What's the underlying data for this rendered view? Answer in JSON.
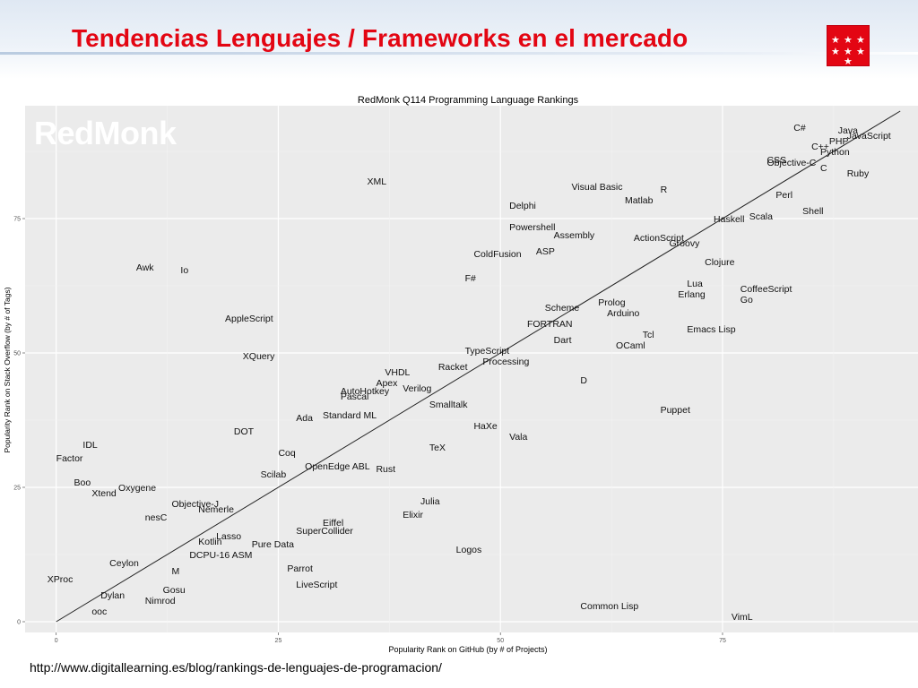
{
  "slide": {
    "title": "Tendencias Lenguajes / Frameworks en el mercado",
    "source_url": "http://www.digitallearning.es/blog/rankings-de-lenguajes-de-programacion/",
    "title_color": "#e30613",
    "logo_icon": "comunidad-de-madrid-flag-logo",
    "logo_color": "#e30613"
  },
  "chart_data": {
    "type": "scatter",
    "title": "RedMonk Q114 Programming Language Rankings",
    "watermark": "RedMonk",
    "xlabel": "Popularity Rank on GitHub (by # of Projects)",
    "ylabel": "Popularity Rank on Stack Overflow (by # of Tags)",
    "xlim": [
      -3.5,
      97
    ],
    "ylim": [
      -2,
      96
    ],
    "xticks": [
      0,
      25,
      50,
      75
    ],
    "yticks": [
      0,
      25,
      50,
      75
    ],
    "grid": true,
    "panel_color": "#ebebeb",
    "trend_line": {
      "from": [
        0,
        0
      ],
      "to": [
        95,
        95
      ]
    },
    "points": [
      {
        "label": "C#",
        "x": 83,
        "y": 92
      },
      {
        "label": "Java",
        "x": 88,
        "y": 91.5
      },
      {
        "label": "JavaScript",
        "x": 89,
        "y": 90.5
      },
      {
        "label": "PHP",
        "x": 87,
        "y": 89.5
      },
      {
        "label": "C++",
        "x": 85,
        "y": 88.5
      },
      {
        "label": "Python",
        "x": 86,
        "y": 87.5
      },
      {
        "label": "CSS",
        "x": 80,
        "y": 86
      },
      {
        "label": "Objective-C",
        "x": 80,
        "y": 85.5
      },
      {
        "label": "C",
        "x": 86,
        "y": 84.5
      },
      {
        "label": "Ruby",
        "x": 89,
        "y": 83.5
      },
      {
        "label": "XML",
        "x": 35,
        "y": 82
      },
      {
        "label": "Visual Basic",
        "x": 58,
        "y": 81
      },
      {
        "label": "R",
        "x": 68,
        "y": 80.5
      },
      {
        "label": "Perl",
        "x": 81,
        "y": 79.5
      },
      {
        "label": "Matlab",
        "x": 64,
        "y": 78.5
      },
      {
        "label": "Delphi",
        "x": 51,
        "y": 77.5
      },
      {
        "label": "Shell",
        "x": 84,
        "y": 76.5
      },
      {
        "label": "Scala",
        "x": 78,
        "y": 75.5
      },
      {
        "label": "Haskell",
        "x": 74,
        "y": 75
      },
      {
        "label": "Powershell",
        "x": 51,
        "y": 73.5
      },
      {
        "label": "Assembly",
        "x": 56,
        "y": 72
      },
      {
        "label": "ActionScript",
        "x": 65,
        "y": 71.5
      },
      {
        "label": "Groovy",
        "x": 69,
        "y": 70.5
      },
      {
        "label": "ASP",
        "x": 54,
        "y": 69
      },
      {
        "label": "ColdFusion",
        "x": 47,
        "y": 68.5
      },
      {
        "label": "Clojure",
        "x": 73,
        "y": 67
      },
      {
        "label": "Awk",
        "x": 9,
        "y": 66
      },
      {
        "label": "Io",
        "x": 14,
        "y": 65.5
      },
      {
        "label": "F#",
        "x": 46,
        "y": 64
      },
      {
        "label": "Lua",
        "x": 71,
        "y": 63
      },
      {
        "label": "CoffeeScript",
        "x": 77,
        "y": 62
      },
      {
        "label": "Erlang",
        "x": 70,
        "y": 61
      },
      {
        "label": "Go",
        "x": 77,
        "y": 60
      },
      {
        "label": "Prolog",
        "x": 61,
        "y": 59.5
      },
      {
        "label": "Scheme",
        "x": 55,
        "y": 58.5
      },
      {
        "label": "Arduino",
        "x": 62,
        "y": 57.5
      },
      {
        "label": "AppleScript",
        "x": 19,
        "y": 56.5
      },
      {
        "label": "FORTRAN",
        "x": 53,
        "y": 55.5
      },
      {
        "label": "Emacs Lisp",
        "x": 71,
        "y": 54.5
      },
      {
        "label": "Tcl",
        "x": 66,
        "y": 53.5
      },
      {
        "label": "Dart",
        "x": 56,
        "y": 52.5
      },
      {
        "label": "OCaml",
        "x": 63,
        "y": 51.5
      },
      {
        "label": "TypeScript",
        "x": 46,
        "y": 50.5
      },
      {
        "label": "XQuery",
        "x": 21,
        "y": 49.5
      },
      {
        "label": "Processing",
        "x": 48,
        "y": 48.5
      },
      {
        "label": "Racket",
        "x": 43,
        "y": 47.5
      },
      {
        "label": "VHDL",
        "x": 37,
        "y": 46.5
      },
      {
        "label": "D",
        "x": 59,
        "y": 45
      },
      {
        "label": "Apex",
        "x": 36,
        "y": 44.5
      },
      {
        "label": "Verilog",
        "x": 39,
        "y": 43.5
      },
      {
        "label": "AutoHotkey",
        "x": 32,
        "y": 43
      },
      {
        "label": "Pascal",
        "x": 32,
        "y": 42
      },
      {
        "label": "Smalltalk",
        "x": 42,
        "y": 40.5
      },
      {
        "label": "Puppet",
        "x": 68,
        "y": 39.5
      },
      {
        "label": "Standard ML",
        "x": 30,
        "y": 38.5
      },
      {
        "label": "Ada",
        "x": 27,
        "y": 38
      },
      {
        "label": "HaXe",
        "x": 47,
        "y": 36.5
      },
      {
        "label": "DOT",
        "x": 20,
        "y": 35.5
      },
      {
        "label": "Vala",
        "x": 51,
        "y": 34.5
      },
      {
        "label": "IDL",
        "x": 3,
        "y": 33
      },
      {
        "label": "TeX",
        "x": 42,
        "y": 32.5
      },
      {
        "label": "Coq",
        "x": 25,
        "y": 31.5
      },
      {
        "label": "Factor",
        "x": 0,
        "y": 30.5
      },
      {
        "label": "OpenEdge ABL",
        "x": 28,
        "y": 29
      },
      {
        "label": "Rust",
        "x": 36,
        "y": 28.5
      },
      {
        "label": "Scilab",
        "x": 23,
        "y": 27.5
      },
      {
        "label": "Boo",
        "x": 2,
        "y": 26
      },
      {
        "label": "Oxygene",
        "x": 7,
        "y": 25
      },
      {
        "label": "Xtend",
        "x": 4,
        "y": 24
      },
      {
        "label": "Julia",
        "x": 41,
        "y": 22.5
      },
      {
        "label": "Objective-J",
        "x": 13,
        "y": 22
      },
      {
        "label": "Nemerle",
        "x": 16,
        "y": 21
      },
      {
        "label": "Elixir",
        "x": 39,
        "y": 20
      },
      {
        "label": "nesC",
        "x": 10,
        "y": 19.5
      },
      {
        "label": "Eiffel",
        "x": 30,
        "y": 18.5
      },
      {
        "label": "SuperCollider",
        "x": 27,
        "y": 17
      },
      {
        "label": "Lasso",
        "x": 18,
        "y": 16
      },
      {
        "label": "Kotlin",
        "x": 16,
        "y": 15
      },
      {
        "label": "Pure Data",
        "x": 22,
        "y": 14.5
      },
      {
        "label": "Logos",
        "x": 45,
        "y": 13.5
      },
      {
        "label": "DCPU-16 ASM",
        "x": 15,
        "y": 12.5
      },
      {
        "label": "Ceylon",
        "x": 6,
        "y": 11
      },
      {
        "label": "Parrot",
        "x": 26,
        "y": 10
      },
      {
        "label": "M",
        "x": 13,
        "y": 9.5
      },
      {
        "label": "XProc",
        "x": -1,
        "y": 8
      },
      {
        "label": "LiveScript",
        "x": 27,
        "y": 7
      },
      {
        "label": "Gosu",
        "x": 12,
        "y": 6
      },
      {
        "label": "Dylan",
        "x": 5,
        "y": 5
      },
      {
        "label": "Nimrod",
        "x": 10,
        "y": 4
      },
      {
        "label": "Common Lisp",
        "x": 59,
        "y": 3
      },
      {
        "label": "ooc",
        "x": 4,
        "y": 2
      },
      {
        "label": "VimL",
        "x": 76,
        "y": 1
      }
    ]
  }
}
